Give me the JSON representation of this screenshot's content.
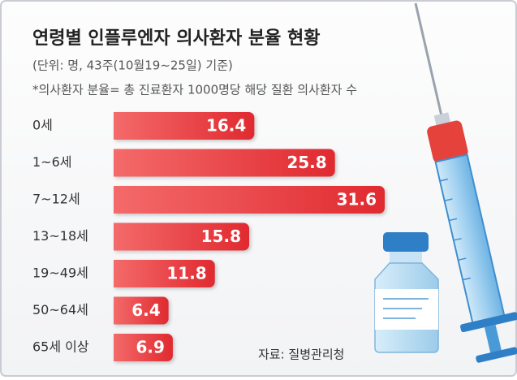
{
  "chart_data": {
    "type": "bar",
    "orientation": "horizontal",
    "title": "연령별 인플루엔자 의사환자 분율 현황",
    "subtitle": "(단위: 명, 43주(10월19~25일) 기준)",
    "note": "*의사환자 분율= 총 진료환자 1000명당 해당 질환 의사환자 수",
    "source": "자료: 질병관리청",
    "categories": [
      "0세",
      "1~6세",
      "7~12세",
      "13~18세",
      "19~49세",
      "50~64세",
      "65세 이상"
    ],
    "values": [
      16.4,
      25.8,
      31.6,
      15.8,
      11.8,
      6.4,
      6.9
    ],
    "color": "#e8343a"
  }
}
